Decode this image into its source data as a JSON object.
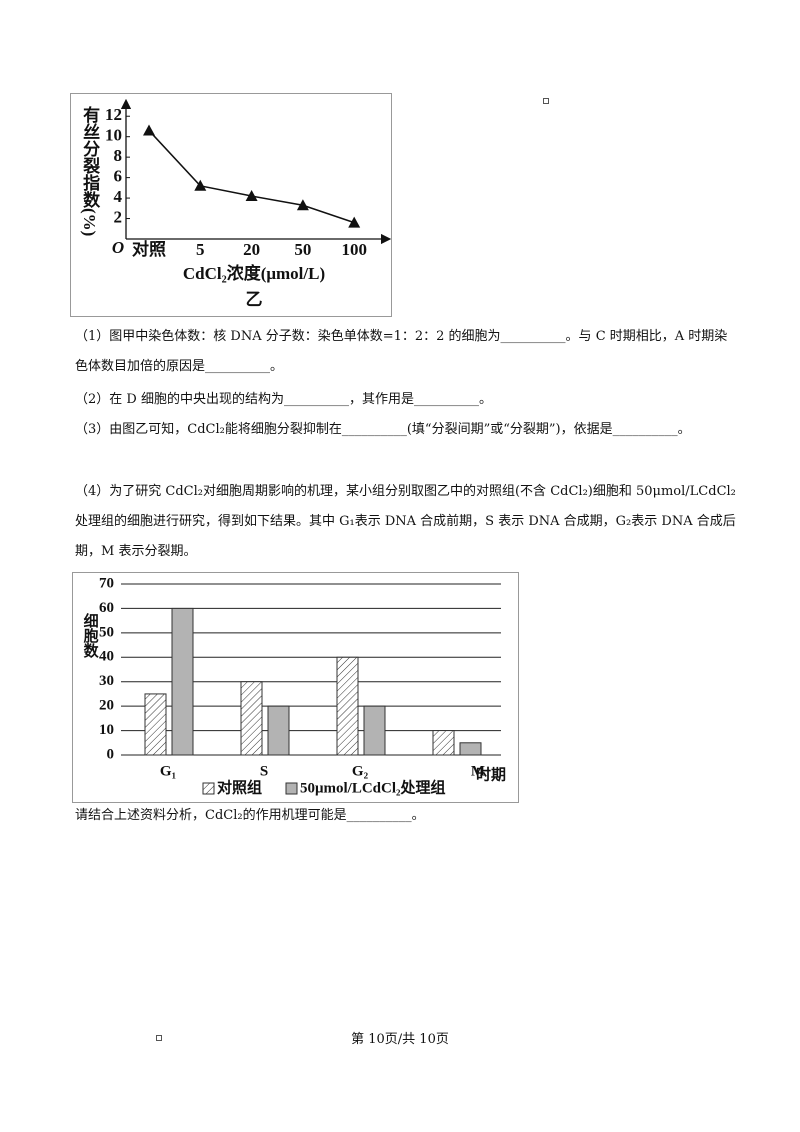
{
  "chart_data": [
    {
      "type": "line",
      "y_label": "有丝分裂指数(%)",
      "origin_label": "O",
      "x_label": "CdCl₂浓度(μmol/L)",
      "caption": "乙",
      "categories": [
        "对照",
        "5",
        "20",
        "50",
        "100"
      ],
      "values": [
        10.6,
        5.2,
        4.2,
        3.3,
        1.6
      ],
      "color": "#111111",
      "ylim": [
        0,
        13
      ],
      "yticks": [
        2,
        4,
        6,
        8,
        10,
        12
      ]
    },
    {
      "type": "bar",
      "y_label": "细胞数",
      "x_label": "时期",
      "categories": [
        "G₁",
        "S",
        "G₂",
        "M"
      ],
      "series": [
        {
          "name": "对照组",
          "color": "#ffffff",
          "pattern": "hatch",
          "values": [
            25,
            30,
            40,
            10
          ]
        },
        {
          "name": "50μmol/LCdCl₂处理组",
          "color": "#b3b3b3",
          "values": [
            60,
            20,
            20,
            5
          ]
        }
      ],
      "ylim": [
        0,
        70
      ],
      "yticks": [
        0,
        10,
        20,
        30,
        40,
        50,
        60,
        70
      ],
      "grid": true
    }
  ],
  "questions": [
    "（1）图甲中染色体数：核 DNA 分子数：染色单体数=1：2：2 的细胞为__________。与 C 时期相比，A 时期染色体数目加倍的原因是__________。",
    "（2）在 D 细胞的中央出现的结构为__________，其作用是__________。",
    "（3）由图乙可知，CdCl₂能将细胞分裂抑制在__________(填“分裂间期”或“分裂期”)，依据是__________。",
    "（4）为了研究 CdCl₂对细胞周期影响的机理，某小组分别取图乙中的对照组(不含 CdCl₂)细胞和 50μmol/LCdCl₂处理组的细胞进行研究，得到如下结果。其中 G₁表示 DNA 合成前期，S 表示 DNA 合成期，G₂表示 DNA 合成后期，M 表示分裂期。",
    "请结合上述资料分析，CdCl₂的作用机理可能是__________。"
  ],
  "footer": "第 10页/共 10页"
}
